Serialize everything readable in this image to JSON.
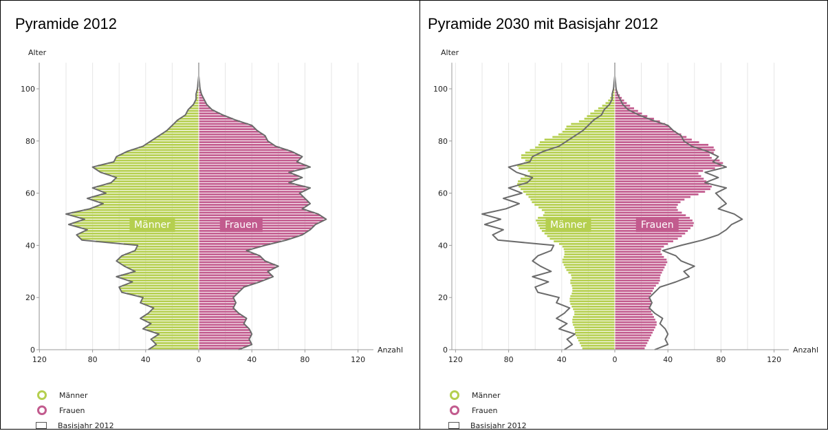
{
  "colors": {
    "maenner": "#b5cf4f",
    "frauen": "#c25b8e",
    "basisjahr": "#6b6b6b",
    "grid": "#e6e6e6"
  },
  "panels": [
    {
      "title": "Pyramide 2012",
      "legend": [
        "Männer",
        "Frauen",
        "Basisjahr 2012"
      ]
    },
    {
      "title": "Pyramide 2030 mit Basisjahr 2012",
      "legend": [
        "Männer",
        "Frauen",
        "Basisjahr 2012"
      ]
    }
  ],
  "chart_data": [
    {
      "type": "bar",
      "orientation": "horizontal-pyramid",
      "title": "Pyramide 2012",
      "ylabel": "Alter",
      "xlabel": "Anzahl",
      "yticks": [
        0,
        20,
        40,
        60,
        80,
        100
      ],
      "xticks": [
        120,
        80,
        40,
        0,
        40,
        80,
        120
      ],
      "xlim": [
        -120,
        120
      ],
      "ylim": [
        0,
        110
      ],
      "grid": true,
      "legend_position": "bottom-left",
      "inner_labels": {
        "left": "Männer",
        "right": "Frauen"
      },
      "age_points": [
        0,
        2,
        4,
        6,
        8,
        10,
        12,
        14,
        16,
        18,
        20,
        22,
        24,
        26,
        28,
        30,
        32,
        34,
        36,
        38,
        40,
        42,
        44,
        46,
        48,
        50,
        52,
        54,
        56,
        58,
        60,
        62,
        64,
        66,
        68,
        70,
        72,
        74,
        76,
        78,
        80,
        82,
        84,
        86,
        88,
        90,
        92,
        94,
        96,
        98,
        100,
        105,
        110
      ],
      "series": [
        {
          "name": "Männer",
          "values": [
            38,
            32,
            36,
            30,
            42,
            36,
            44,
            38,
            34,
            44,
            42,
            58,
            60,
            50,
            62,
            48,
            56,
            62,
            58,
            48,
            46,
            88,
            92,
            84,
            98,
            86,
            100,
            82,
            72,
            84,
            70,
            80,
            66,
            62,
            74,
            80,
            64,
            62,
            54,
            42,
            36,
            30,
            24,
            20,
            16,
            10,
            8,
            4,
            2,
            2,
            1,
            0,
            0
          ]
        },
        {
          "name": "Frauen",
          "values": [
            30,
            40,
            38,
            40,
            38,
            34,
            36,
            30,
            26,
            28,
            26,
            30,
            34,
            46,
            56,
            52,
            60,
            50,
            46,
            36,
            50,
            66,
            78,
            84,
            88,
            96,
            90,
            78,
            84,
            80,
            76,
            84,
            68,
            78,
            68,
            84,
            74,
            78,
            70,
            58,
            52,
            50,
            44,
            40,
            28,
            18,
            10,
            6,
            4,
            2,
            1,
            0,
            0
          ]
        }
      ]
    },
    {
      "type": "bar",
      "orientation": "horizontal-pyramid",
      "title": "Pyramide 2030 mit Basisjahr 2012",
      "ylabel": "Alter",
      "xlabel": "Anzahl",
      "yticks": [
        0,
        20,
        40,
        60,
        80,
        100
      ],
      "xticks": [
        120,
        80,
        40,
        0,
        40,
        80,
        120
      ],
      "xlim": [
        -120,
        120
      ],
      "ylim": [
        0,
        110
      ],
      "grid": true,
      "legend_position": "bottom-left",
      "inner_labels": {
        "left": "Männer",
        "right": "Frauen"
      },
      "age_points": [
        0,
        2,
        4,
        6,
        8,
        10,
        12,
        14,
        16,
        18,
        20,
        22,
        24,
        26,
        28,
        30,
        32,
        34,
        36,
        38,
        40,
        42,
        44,
        46,
        48,
        50,
        52,
        54,
        56,
        58,
        60,
        62,
        64,
        66,
        68,
        70,
        72,
        74,
        76,
        78,
        80,
        82,
        84,
        86,
        88,
        90,
        92,
        94,
        96,
        98,
        100,
        105,
        110
      ],
      "series": [
        {
          "name": "Männer",
          "values": [
            24,
            26,
            28,
            30,
            30,
            32,
            32,
            30,
            32,
            34,
            34,
            32,
            32,
            34,
            32,
            36,
            38,
            40,
            38,
            38,
            40,
            48,
            52,
            56,
            58,
            60,
            52,
            56,
            62,
            64,
            68,
            72,
            74,
            70,
            62,
            76,
            66,
            72,
            66,
            58,
            56,
            44,
            38,
            36,
            24,
            20,
            14,
            8,
            4,
            2,
            1,
            0,
            0
          ]
        },
        {
          "name": "Frauen",
          "values": [
            22,
            24,
            26,
            28,
            30,
            32,
            30,
            28,
            26,
            28,
            26,
            28,
            30,
            34,
            34,
            36,
            38,
            40,
            36,
            34,
            38,
            46,
            52,
            56,
            60,
            58,
            52,
            46,
            48,
            54,
            66,
            74,
            70,
            66,
            62,
            80,
            82,
            70,
            76,
            74,
            60,
            52,
            44,
            40,
            32,
            22,
            16,
            10,
            6,
            3,
            1,
            0,
            0
          ]
        },
        {
          "name": "Basisjahr 2012",
          "values_left": [
            38,
            32,
            36,
            30,
            42,
            36,
            44,
            38,
            34,
            44,
            42,
            58,
            60,
            50,
            62,
            48,
            56,
            62,
            58,
            48,
            46,
            88,
            92,
            84,
            98,
            86,
            100,
            82,
            72,
            84,
            70,
            80,
            66,
            62,
            74,
            80,
            64,
            62,
            54,
            42,
            36,
            30,
            24,
            20,
            16,
            10,
            8,
            4,
            2,
            2,
            1,
            0,
            0
          ],
          "values_right": [
            30,
            40,
            38,
            40,
            38,
            34,
            36,
            30,
            26,
            28,
            26,
            30,
            34,
            46,
            56,
            52,
            60,
            50,
            46,
            36,
            50,
            66,
            78,
            84,
            88,
            96,
            90,
            78,
            84,
            80,
            76,
            84,
            68,
            78,
            68,
            84,
            74,
            78,
            70,
            58,
            52,
            50,
            44,
            40,
            28,
            18,
            10,
            6,
            4,
            2,
            1,
            0,
            0
          ]
        }
      ]
    }
  ]
}
